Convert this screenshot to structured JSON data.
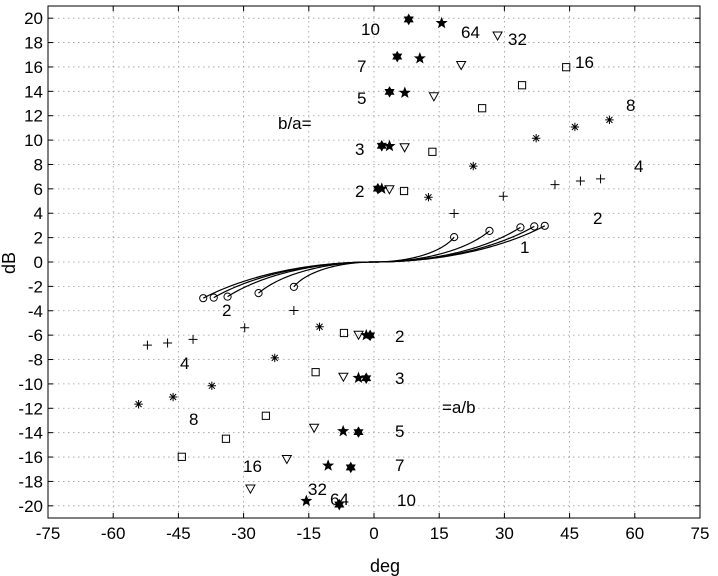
{
  "chart_data": {
    "type": "line",
    "title": "",
    "xlabel": "deg",
    "ylabel": "dB",
    "xlim": [
      -75,
      75
    ],
    "ylim": [
      -21,
      21
    ],
    "xticks": [
      -75,
      -60,
      -45,
      -30,
      -15,
      0,
      15,
      30,
      45,
      60,
      75
    ],
    "yticks": [
      -20,
      -18,
      -16,
      -14,
      -12,
      -10,
      -8,
      -6,
      -4,
      -2,
      0,
      2,
      4,
      6,
      8,
      10,
      12,
      14,
      16,
      18,
      20
    ],
    "grid": true,
    "annotation_left": "b/a=",
    "annotation_right": "=a/b",
    "curve_labels": [
      "2",
      "3",
      "5",
      "7",
      "10"
    ],
    "omega_labels": [
      "1",
      "2",
      "4",
      "8",
      "16",
      "32",
      "64"
    ],
    "marker_legend": [
      {
        "ratio": "1",
        "marker": "circle"
      },
      {
        "ratio": "2",
        "marker": "plus"
      },
      {
        "ratio": "4",
        "marker": "asterisk"
      },
      {
        "ratio": "8",
        "marker": "square"
      },
      {
        "ratio": "16",
        "marker": "triangle-down"
      },
      {
        "ratio": "32",
        "marker": "star"
      },
      {
        "ratio": "64",
        "marker": "hexagram"
      }
    ],
    "series": [
      {
        "name": "2",
        "ratio": 2
      },
      {
        "name": "3",
        "ratio": 3
      },
      {
        "name": "5",
        "ratio": 5
      },
      {
        "name": "7",
        "ratio": 7
      },
      {
        "name": "10",
        "ratio": 10
      }
    ]
  }
}
